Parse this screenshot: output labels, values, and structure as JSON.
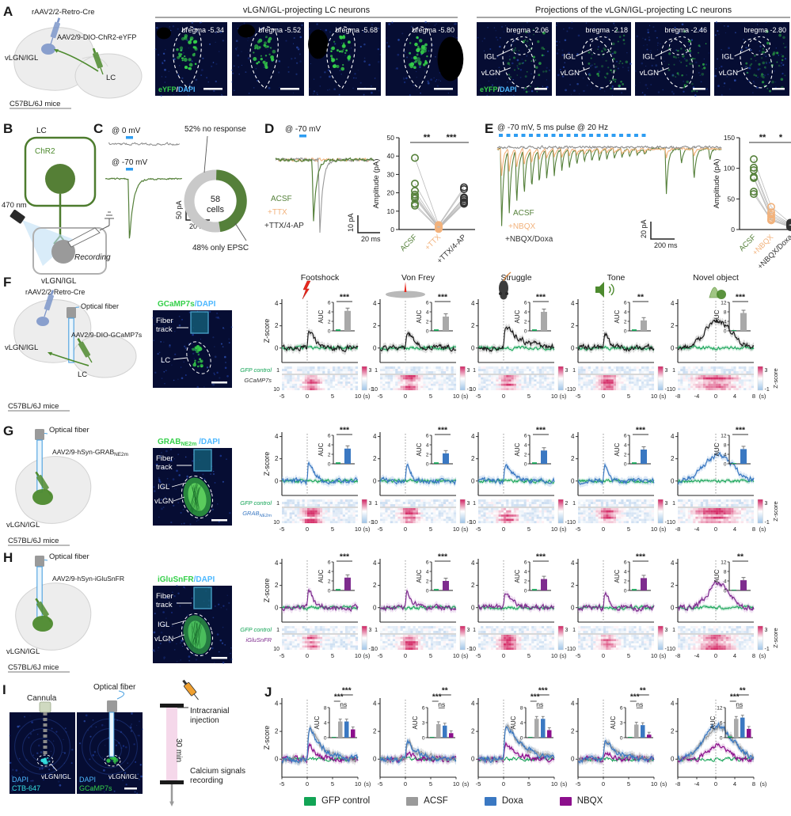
{
  "colors": {
    "ephys_green": "#55803a",
    "gfp_green": "#12a455",
    "orange": "#f2b27c",
    "trace_gray": "#909090",
    "doxa_blue": "#3a78c2",
    "iglusnfr_purple": "#7e2c8e",
    "nbqx_magenta": "#8c0f8c",
    "pulse_blue": "#2e9df2",
    "heat_pink": "#d6336c",
    "heat_blue": "#a9c7e8",
    "micro_bg": "#060d33",
    "cell_green": "#35d04a",
    "dapi_blue": "#4db8ff",
    "ctb_cyan": "#35e0e0"
  },
  "panelA": {
    "label": "A",
    "schematic": {
      "retro": "rAAV2/2-Retro-Cre",
      "aav": "AAV2/9-DIO-ChR2-eYFP",
      "region": "vLGN/IGL",
      "target": "LC",
      "mouse": "C57BL/6J mice"
    },
    "group1": {
      "title": "vLGN/IGL-projecting LC neurons",
      "stain": [
        "eYFP",
        "/",
        "DAPI"
      ],
      "bregma": [
        "bregma -5.34",
        "bregma -5.52",
        "bregma -5.68",
        "bregma -5.80"
      ]
    },
    "group2": {
      "title": "Projections of the vLGN/IGL-projecting LC neurons",
      "stain": [
        "eYFP",
        "/",
        "DAPI"
      ],
      "igl": "IGL",
      "vlgn": "vLGN",
      "bregma": [
        "bregma -2.06",
        "bregma -2.18",
        "bregma -2.46",
        "bregma -2.80"
      ]
    }
  },
  "panelB": {
    "label": "B",
    "lc": "LC",
    "chr2": "ChR2",
    "light": "470 nm",
    "recording": "Recording",
    "region": "vLGN/IGL"
  },
  "panelC": {
    "label": "C",
    "trace0": "@ 0 mV",
    "trace70": "@ -70 mV",
    "scale_v": "50 pA",
    "scale_h": "20 ms",
    "donut": {
      "n": "58",
      "unit": "cells",
      "gray_pct": 52,
      "green_pct": 48,
      "gray_label": "52% no response",
      "green_label": "48% only EPSC"
    }
  },
  "panelD": {
    "label": "D",
    "header": "@ -70 mV",
    "scale_v": "10 pA",
    "scale_h": "20 ms",
    "ylabel": "Amplitude (pA)",
    "yticks": [
      0,
      10,
      20,
      30,
      40,
      50
    ],
    "ymax": 50,
    "sig": [
      "**",
      "***"
    ],
    "categories": [
      "ACSF",
      "+TTX",
      "+TTX/4-AP"
    ],
    "series": [
      [
        39,
        25,
        21,
        19,
        18,
        17,
        14,
        13
      ],
      [
        2.5,
        2,
        1.5,
        1.2,
        1,
        0.8,
        0.5,
        0.3
      ],
      [
        23,
        22,
        17.5,
        17,
        16,
        15,
        14.5,
        14
      ]
    ]
  },
  "panelE": {
    "label": "E",
    "header": "@ -70 mV, 5 ms pulse @ 20 Hz",
    "scale_v": "20 pA",
    "scale_h": "200 ms",
    "ylabel": "Amplitude (pA)",
    "yticks": [
      0,
      50,
      100,
      150
    ],
    "ymax": 150,
    "sig": [
      "**",
      "*"
    ],
    "categories": [
      "ACSF",
      "+NBQX",
      "+NBQX/Doxa"
    ],
    "series": [
      [
        115,
        101,
        97,
        86,
        84,
        62,
        58
      ],
      [
        37,
        28,
        24,
        21,
        18,
        16,
        15
      ],
      [
        11,
        9,
        8,
        7,
        6,
        5,
        4
      ]
    ]
  },
  "panelF": {
    "label": "F",
    "retro": "rAAV2/2-Retro-Cre",
    "fiber": "Optical fiber",
    "aav": "AAV2/9-DIO-GCaMP7s",
    "region": "vLGN/IGL",
    "target": "LC",
    "mouse": "C57BL/6J mice",
    "micro": {
      "title_green": "GCaMP7s",
      "title_blue": "/DAPI",
      "fiber_track": [
        "Fiber",
        "track"
      ],
      "target": "LC"
    }
  },
  "panelG": {
    "label": "G",
    "fiber": "Optical fiber",
    "aav_main": "AAV2/9-hSyn-GRAB",
    "aav_sub": "NE2m",
    "region": "vLGN/IGL",
    "mouse": "C57BL/6J mice",
    "micro": {
      "title_main": "GRAB",
      "title_sub": "NE2m",
      "title_blue": " /DAPI",
      "fiber_track": [
        "Fiber",
        "track"
      ],
      "igl": "IGL",
      "vlgn": "vLGN"
    }
  },
  "panelH": {
    "label": "H",
    "fiber": "Optical fiber",
    "aav": "AAV2/9-hSyn-iGluSnFR",
    "region": "vLGN/IGL",
    "mouse": "C57BL/6J mice",
    "micro": {
      "title_green": "iGluSnFR",
      "title_blue": "/DAPI",
      "fiber_track": [
        "Fiber",
        "track"
      ],
      "igl": "IGL",
      "vlgn": "vLGN"
    }
  },
  "photometry": {
    "stimuli": [
      "Footshock",
      "Von Frey",
      "Struggle",
      "Tone",
      "Novel object"
    ],
    "ylabel": "Z-score",
    "yticks": [
      0,
      2,
      4
    ],
    "xticks": [
      [
        -5,
        0,
        5,
        10
      ],
      [
        -5,
        0,
        5,
        10
      ],
      [
        -5,
        0,
        5,
        10
      ],
      [
        -5,
        0,
        5,
        10
      ],
      [
        -8,
        -4,
        0,
        4,
        8
      ]
    ],
    "xunit": "(s)",
    "auc_label": "AUC",
    "heat_row_first": "1",
    "heat_row_last": "10",
    "heat_min": "-1",
    "colorbar_label": "Z-score",
    "control_bar": 0.3,
    "rows": [
      {
        "panel": "F",
        "control_label": "GFP control",
        "sensor_label": "GCaMP7s",
        "sensor_sub": "",
        "color": "#1c1c1c",
        "band": "#aaaaaa",
        "auc": [
          {
            "ticks": [
              0,
              2,
              4,
              6
            ],
            "stars": "***",
            "bar": 4.2
          },
          {
            "ticks": [
              0,
              2,
              4,
              6
            ],
            "stars": "***",
            "bar": 3.0
          },
          {
            "ticks": [
              0,
              2,
              4,
              6
            ],
            "stars": "***",
            "bar": 4.0
          },
          {
            "ticks": [
              0,
              2,
              4,
              6
            ],
            "stars": "**",
            "bar": 2.2
          },
          {
            "ticks": [
              0,
              4,
              8,
              12
            ],
            "stars": "***",
            "bar": 7.5
          }
        ],
        "heat_max": [
          "3",
          "3",
          "3",
          "3",
          "3"
        ],
        "peaks": [
          {
            "amp": 3.1,
            "decay": 1.1
          },
          {
            "amp": 2.6,
            "decay": 1.2
          },
          {
            "amp": 2.5,
            "decay": 3.0
          },
          {
            "amp": 2.9,
            "decay": 0.8
          },
          {
            "broad": true,
            "amp": 2.4,
            "sig": 2.8
          }
        ]
      },
      {
        "panel": "G",
        "control_label": "GFP control",
        "sensor_label": "GRAB",
        "sensor_sub": "NE2m",
        "color": "#3a78c2",
        "band": "#a9c7e8",
        "auc": [
          {
            "ticks": [
              0,
              2,
              4,
              6
            ],
            "stars": "***",
            "bar": 3.2
          },
          {
            "ticks": [
              0,
              2,
              4,
              6
            ],
            "stars": "***",
            "bar": 2.2
          },
          {
            "ticks": [
              0,
              2,
              4,
              6
            ],
            "stars": "***",
            "bar": 2.8
          },
          {
            "ticks": [
              0,
              2,
              4,
              6
            ],
            "stars": "***",
            "bar": 3.0
          },
          {
            "ticks": [
              0,
              4,
              8,
              12
            ],
            "stars": "***",
            "bar": 6.2
          }
        ],
        "heat_max": [
          "3",
          "3",
          "2",
          "3",
          "3"
        ],
        "peaks": [
          {
            "amp": 3.4,
            "decay": 0.9
          },
          {
            "amp": 2.5,
            "decay": 0.8
          },
          {
            "amp": 2.2,
            "decay": 1.6
          },
          {
            "amp": 3.3,
            "decay": 0.7
          },
          {
            "broad": true,
            "amp": 2.3,
            "sig": 3.0
          }
        ]
      },
      {
        "panel": "H",
        "control_label": "GFP control",
        "sensor_label": "iGluSnFR",
        "sensor_sub": "",
        "color": "#7e2c8e",
        "band": "#d9b3e2",
        "auc": [
          {
            "ticks": [
              0,
              2,
              4,
              6
            ],
            "stars": "***",
            "bar": 2.7
          },
          {
            "ticks": [
              0,
              2,
              4,
              6
            ],
            "stars": "***",
            "bar": 2.0
          },
          {
            "ticks": [
              0,
              2,
              4,
              6
            ],
            "stars": "***",
            "bar": 2.4
          },
          {
            "ticks": [
              0,
              2,
              4,
              6
            ],
            "stars": "***",
            "bar": 2.6
          },
          {
            "ticks": [
              0,
              4,
              8,
              12
            ],
            "stars": "**",
            "bar": 4.3
          }
        ],
        "heat_max": [
          "3",
          "3",
          "3",
          "3",
          "3"
        ],
        "peaks": [
          {
            "amp": 3.3,
            "decay": 0.8
          },
          {
            "amp": 2.5,
            "decay": 1.0
          },
          {
            "amp": 2.4,
            "decay": 1.4
          },
          {
            "amp": 2.5,
            "decay": 0.8
          },
          {
            "broad": true,
            "amp": 2.2,
            "sig": 2.2
          }
        ]
      }
    ]
  },
  "panelI": {
    "label": "I",
    "cannula": "Cannula",
    "fiber": "Optical fiber",
    "img1": {
      "stain1": "DAPI",
      "stain2": "CTB-647",
      "region": "vLGN/IGL"
    },
    "img2": {
      "stain1": "DAPI",
      "stain2": "GCaMP7s",
      "region": "vLGN/IGL"
    },
    "timeline": {
      "injection": [
        "Intracranial",
        "injection"
      ],
      "duration": "30 min",
      "recording": [
        "Calcium signals",
        "recording"
      ]
    }
  },
  "panelJ": {
    "label": "J",
    "ylabel": "Z-score",
    "yticks": [
      0,
      2,
      4
    ],
    "ns": "ns",
    "auc_label": "AUC",
    "insets": [
      {
        "ticks": [
          0,
          4,
          8
        ],
        "top": "***",
        "mid": "***",
        "bars": [
          0.2,
          4.3,
          4.3,
          2.2
        ]
      },
      {
        "ticks": [
          0,
          3,
          6
        ],
        "top": "**",
        "mid": "***",
        "bars": [
          0.15,
          2.7,
          2.4,
          0.9
        ]
      },
      {
        "ticks": [
          0,
          4,
          8
        ],
        "top": "***",
        "mid": "***",
        "bars": [
          0.2,
          5.0,
          5.0,
          2.0
        ]
      },
      {
        "ticks": [
          0,
          3,
          6
        ],
        "top": "**",
        "mid": "***",
        "bars": [
          0.15,
          2.6,
          2.5,
          0.6
        ]
      },
      {
        "ticks": [
          0,
          6,
          12
        ],
        "top": "**",
        "mid": "***",
        "bars": [
          0.5,
          7.5,
          8.0,
          3.5
        ]
      }
    ],
    "traces": [
      {
        "acsf": 3.2,
        "doxa": 3.2,
        "nbqx": 1.6,
        "decay": 2.2
      },
      {
        "acsf": 1.85,
        "doxa": 1.75,
        "nbqx": 0.65,
        "decay": 2.0
      },
      {
        "acsf": 3.2,
        "doxa": 3.2,
        "nbqx": 1.7,
        "decay": 3.2
      },
      {
        "acsf": 1.9,
        "doxa": 1.8,
        "nbqx": 0.7,
        "decay": 2.2
      },
      {
        "broad": true,
        "acsf": 2.3,
        "doxa": 2.4,
        "nbqx": 1.0,
        "sig": 3.0
      }
    ],
    "legend": [
      {
        "label": "GFP control",
        "color": "#12a455"
      },
      {
        "label": "ACSF",
        "color": "#9a9a9a"
      },
      {
        "label": "Doxa",
        "color": "#3a78c2"
      },
      {
        "label": "NBQX",
        "color": "#8c0f8c"
      }
    ]
  }
}
